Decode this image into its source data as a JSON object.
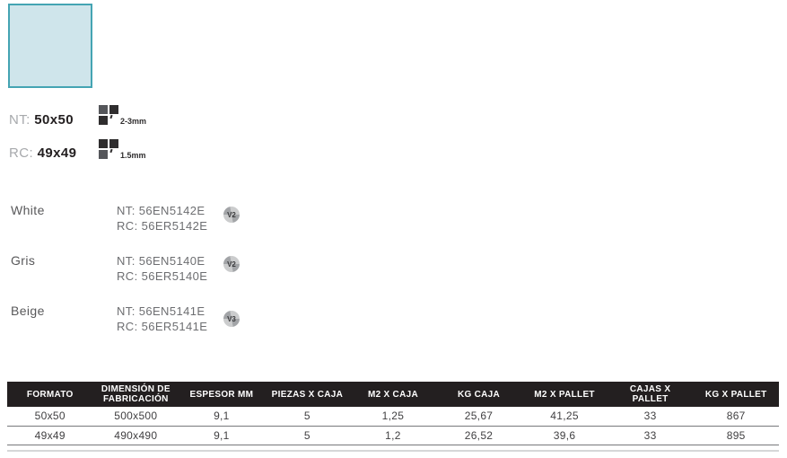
{
  "swatch": {
    "fill": "#cfe5eb",
    "border": "#44a4b3"
  },
  "formats": [
    {
      "prefix": "NT:",
      "size": "50x50",
      "joint": "2-3mm"
    },
    {
      "prefix": "RC:",
      "size": "49x49",
      "joint": "1.5mm"
    }
  ],
  "colors": [
    {
      "name": "White",
      "nt_code": "NT: 56EN5142E",
      "rc_code": "RC: 56ER5142E",
      "shade": "V2"
    },
    {
      "name": "Gris",
      "nt_code": "NT: 56EN5140E",
      "rc_code": "RC: 56ER5140E",
      "shade": "V2"
    },
    {
      "name": "Beige",
      "nt_code": "NT: 56EN5141E",
      "rc_code": "RC: 56ER5141E",
      "shade": "V3"
    }
  ],
  "table": {
    "header_bg": "#231f20",
    "headers": [
      "FORMATO",
      "DIMENSIÓN DE FABRICACIÓN",
      "ESPESOR MM",
      "PIEZAS x CAJA",
      "m2 x CAJA",
      "Kg CAJA",
      "m2 x PALLET",
      "CAJAS x PALLET",
      "Kg x PALLET"
    ],
    "rows": [
      [
        "50x50",
        "500x500",
        "9,1",
        "5",
        "1,25",
        "25,67",
        "41,25",
        "33",
        "867"
      ],
      [
        "49x49",
        "490x490",
        "9,1",
        "5",
        "1,2",
        "26,52",
        "39,6",
        "33",
        "895"
      ]
    ]
  }
}
